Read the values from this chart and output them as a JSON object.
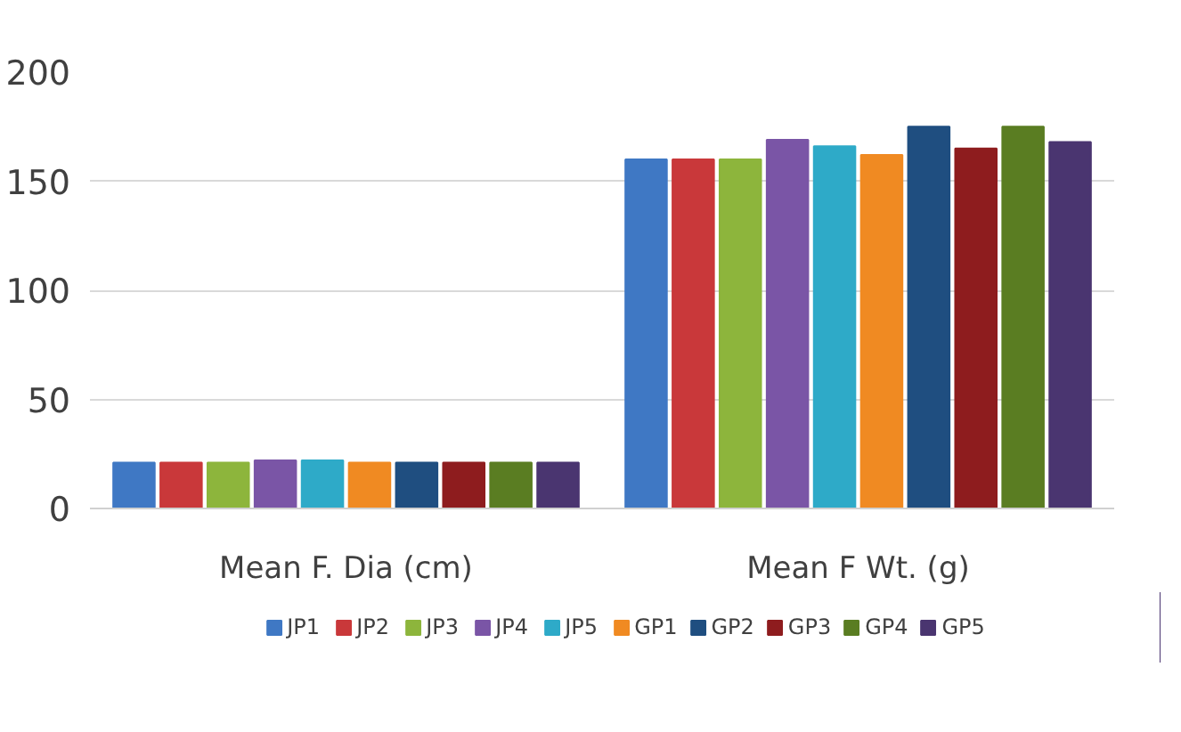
{
  "chart_data": {
    "type": "bar",
    "categories": [
      "Mean F. Dia (cm)",
      "Mean F Wt. (g)"
    ],
    "series": [
      {
        "name": "JP1",
        "color": "#3f78c4",
        "values": [
          21,
          160
        ]
      },
      {
        "name": "JP2",
        "color": "#c9383a",
        "values": [
          21,
          160
        ]
      },
      {
        "name": "JP3",
        "color": "#8db53c",
        "values": [
          21,
          160
        ]
      },
      {
        "name": "JP4",
        "color": "#7a55a6",
        "values": [
          22,
          169
        ]
      },
      {
        "name": "JP5",
        "color": "#2eaac8",
        "values": [
          22,
          166
        ]
      },
      {
        "name": "GP1",
        "color": "#f08a22",
        "values": [
          21,
          162
        ]
      },
      {
        "name": "GP2",
        "color": "#1f4e80",
        "values": [
          21,
          175
        ]
      },
      {
        "name": "GP3",
        "color": "#8e1c1e",
        "values": [
          21,
          165
        ]
      },
      {
        "name": "GP4",
        "color": "#5a7d22",
        "values": [
          21,
          175
        ]
      },
      {
        "name": "GP5",
        "color": "#4a3570",
        "values": [
          21,
          168
        ]
      }
    ],
    "ylim": [
      0,
      200
    ],
    "yticks": [
      0,
      50,
      100,
      150,
      200
    ],
    "grid": "y",
    "legend": "bottom"
  }
}
